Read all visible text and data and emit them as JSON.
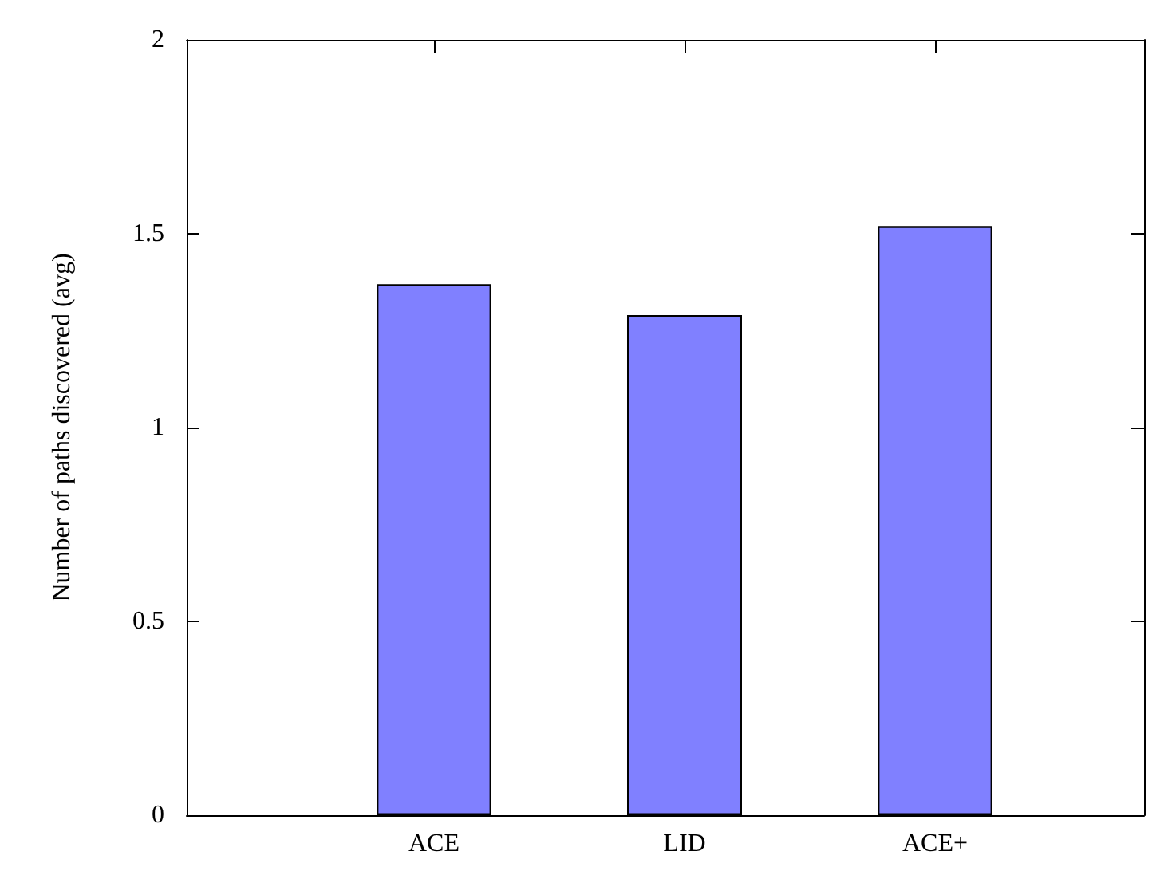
{
  "chart_data": {
    "type": "bar",
    "ylabel": "Number of paths discovered (avg)",
    "categories": [
      "ACE",
      "LID",
      "ACE+"
    ],
    "values": [
      1.37,
      1.29,
      1.52
    ],
    "color": "#8080ff",
    "ylim": [
      0,
      2
    ],
    "yticks": [
      0,
      0.5,
      1,
      1.5,
      2
    ],
    "grid": false
  }
}
